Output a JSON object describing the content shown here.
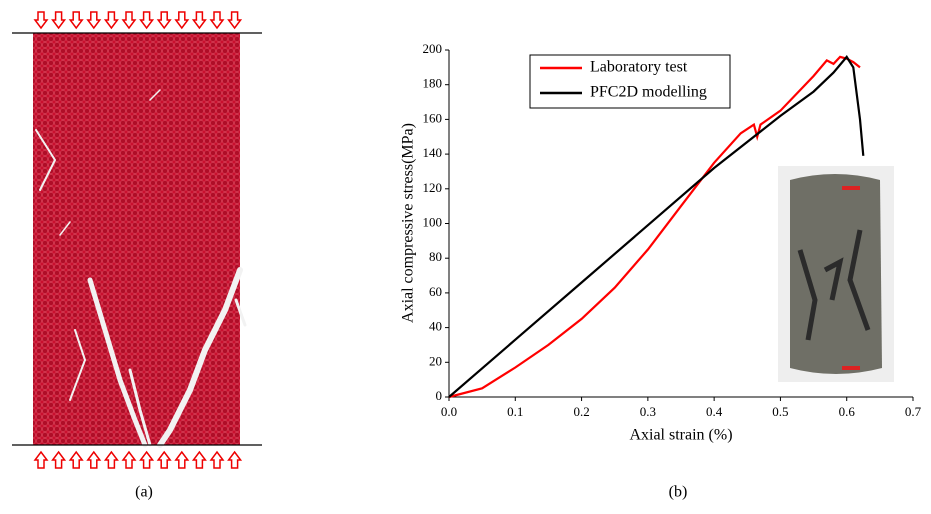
{
  "chart_data": {
    "type": "line",
    "panel_labels": [
      "(a)",
      "(b)"
    ],
    "x_label": "Axial strain (%)",
    "y_label": "Axial compressive stress(MPa)",
    "xlim": [
      0,
      0.7
    ],
    "xticks": [
      {
        "value": 0,
        "label": "0.0"
      },
      0.1,
      0.2,
      0.3,
      0.4,
      0.5,
      0.6,
      0.7
    ],
    "ylim": [
      0,
      200
    ],
    "yticks": [
      0,
      20,
      40,
      60,
      80,
      100,
      120,
      140,
      160,
      180,
      200
    ],
    "legend": "top-left",
    "series": [
      {
        "name": "Laboratory test",
        "color": "#ff0000",
        "x": [
          0,
          0.05,
          0.1,
          0.15,
          0.2,
          0.25,
          0.3,
          0.35,
          0.4,
          0.44,
          0.46,
          0.465,
          0.47,
          0.5,
          0.55,
          0.57,
          0.58,
          0.59,
          0.6,
          0.61,
          0.62
        ],
        "values": [
          0,
          5,
          17,
          30,
          45,
          63,
          85,
          110,
          135,
          152,
          157,
          150,
          157,
          165,
          185,
          194,
          192,
          196,
          195,
          193,
          190
        ]
      },
      {
        "name": "PFC2D modelling",
        "color": "#000000",
        "x": [
          0,
          0.1,
          0.2,
          0.3,
          0.4,
          0.5,
          0.55,
          0.58,
          0.6,
          0.61,
          0.62,
          0.625
        ],
        "values": [
          0,
          33,
          66,
          99,
          132,
          162,
          176,
          187,
          196,
          190,
          160,
          139
        ]
      }
    ]
  }
}
